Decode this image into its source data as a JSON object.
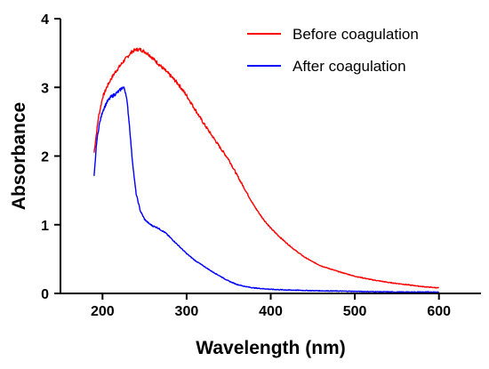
{
  "chart_data": {
    "type": "line",
    "xlabel": "Wavelength (nm)",
    "ylabel": "Absorbance",
    "xlim": [
      150,
      650
    ],
    "ylim": [
      0,
      4
    ],
    "xticks": [
      200,
      300,
      400,
      500,
      600
    ],
    "yticks": [
      0,
      1,
      2,
      3,
      4
    ],
    "grid": false,
    "legend_position": "top-right",
    "series": [
      {
        "name": "Before coagulation",
        "color": "#ff0000",
        "x": [
          190,
          195,
          200,
          205,
          210,
          215,
          220,
          225,
          230,
          235,
          240,
          245,
          250,
          255,
          260,
          265,
          270,
          280,
          290,
          300,
          310,
          320,
          330,
          340,
          350,
          360,
          370,
          380,
          390,
          400,
          410,
          420,
          430,
          440,
          450,
          460,
          480,
          500,
          520,
          540,
          560,
          580,
          600
        ],
        "y": [
          2.05,
          2.55,
          2.85,
          3.0,
          3.12,
          3.22,
          3.3,
          3.38,
          3.45,
          3.52,
          3.55,
          3.55,
          3.52,
          3.48,
          3.42,
          3.36,
          3.3,
          3.18,
          3.05,
          2.88,
          2.68,
          2.48,
          2.3,
          2.12,
          1.95,
          1.72,
          1.5,
          1.28,
          1.1,
          0.95,
          0.83,
          0.72,
          0.62,
          0.53,
          0.46,
          0.4,
          0.32,
          0.25,
          0.2,
          0.16,
          0.13,
          0.1,
          0.08
        ]
      },
      {
        "name": "After coagulation",
        "color": "#0000ff",
        "x": [
          190,
          193,
          196,
          200,
          205,
          210,
          215,
          220,
          224,
          226,
          228,
          230,
          232,
          235,
          238,
          240,
          245,
          250,
          255,
          260,
          265,
          270,
          275,
          280,
          290,
          300,
          310,
          320,
          330,
          340,
          350,
          360,
          370,
          380,
          400,
          420,
          450,
          500,
          550,
          600
        ],
        "y": [
          1.7,
          2.2,
          2.45,
          2.65,
          2.78,
          2.86,
          2.9,
          2.95,
          3.0,
          2.98,
          2.9,
          2.7,
          2.45,
          2.0,
          1.65,
          1.45,
          1.2,
          1.08,
          1.02,
          0.98,
          0.96,
          0.92,
          0.88,
          0.82,
          0.7,
          0.58,
          0.48,
          0.4,
          0.32,
          0.25,
          0.18,
          0.13,
          0.1,
          0.08,
          0.06,
          0.05,
          0.04,
          0.03,
          0.02,
          0.02
        ]
      }
    ]
  }
}
